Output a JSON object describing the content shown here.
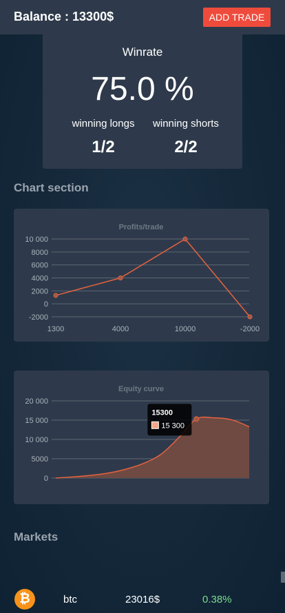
{
  "header": {
    "balance_text": "Balance : 13300$",
    "add_trade_label": "ADD TRADE",
    "accent_color": "#ef4b3c"
  },
  "winrate": {
    "title": "Winrate",
    "value": "75.0 %",
    "longs_label": "winning longs",
    "shorts_label": "winning shorts",
    "longs_value": "1/2",
    "shorts_value": "2/2"
  },
  "chart_section": {
    "title": "Chart section"
  },
  "chart_data": [
    {
      "type": "line",
      "title": "Profits/trade",
      "categories": [
        "1300",
        "4000",
        "10000",
        "-2000"
      ],
      "values": [
        1300,
        4000,
        10000,
        -2000
      ],
      "yticks": [
        "10 000",
        "8000",
        "6000",
        "4000",
        "2000",
        "0",
        "-2000"
      ],
      "ylim": [
        -2000,
        10000
      ],
      "color": "#e8623f"
    },
    {
      "type": "area",
      "title": "Equity curve",
      "values": [
        0,
        300,
        700,
        1300,
        2300,
        3800,
        6200,
        10500,
        15300,
        15600,
        15100,
        13300
      ],
      "yticks": [
        "20 000",
        "15 000",
        "10 000",
        "5000",
        "0"
      ],
      "ylim": [
        0,
        20000
      ],
      "tooltip": {
        "title": "15300",
        "value": "15 300",
        "index": 8
      },
      "color": "#e8623f"
    }
  ],
  "markets": {
    "title": "Markets",
    "items": [
      {
        "icon": "btc-icon",
        "glyph": "₿",
        "symbol": "btc",
        "price": "23016$",
        "change": "0.38%"
      }
    ]
  }
}
